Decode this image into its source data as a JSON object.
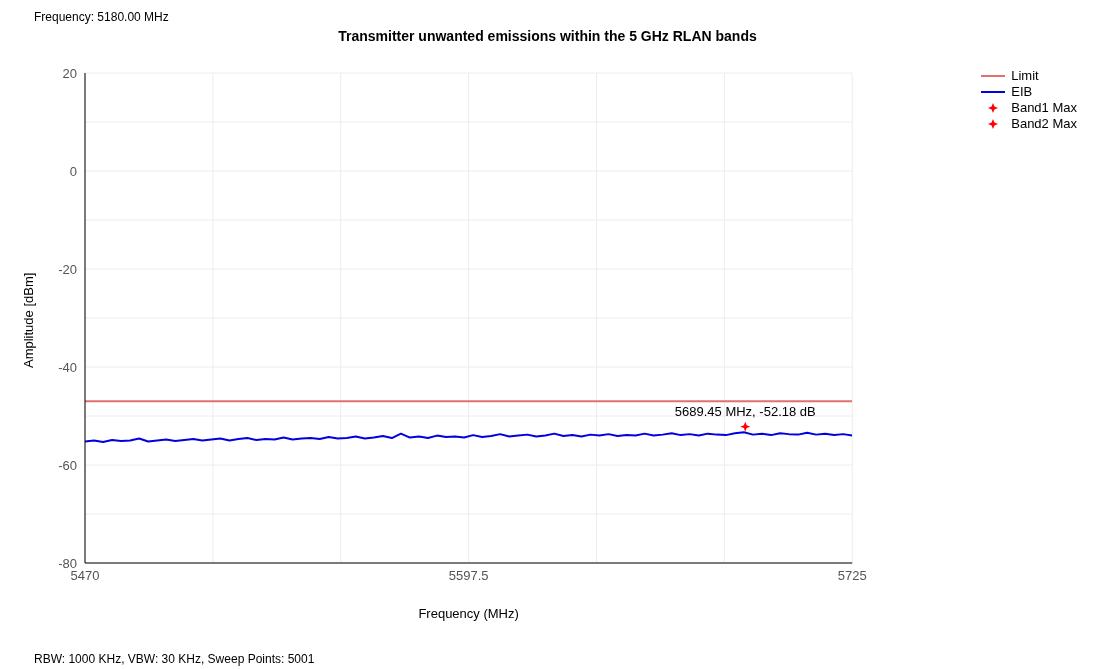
{
  "chart_data": {
    "type": "line",
    "title": "Transmitter unwanted emissions within the 5 GHz RLAN bands",
    "xlabel": "Frequency (MHz)",
    "ylabel": "Amplitude [dBm]",
    "annotations": [
      "Frequency: 5180.00 MHz",
      "RBW: 1000 KHz,  VBW: 30 KHz,  Sweep Points: 5001",
      {
        "text": "5689.45 MHz, -52.18 dB",
        "x": 5689.45,
        "y": -52.18
      }
    ],
    "xlim": [
      5470,
      5725
    ],
    "xticks": [
      5470,
      {
        "value": 5512.5,
        "label": null
      },
      {
        "value": 5555,
        "label": null
      },
      5597.5,
      {
        "value": 5640,
        "label": null
      },
      {
        "value": 5682.5,
        "label": null
      },
      5725
    ],
    "ylim": [
      -80,
      20
    ],
    "yticks": [
      -80,
      {
        "value": -70,
        "label": null
      },
      -60,
      {
        "value": -50,
        "label": null
      },
      -40,
      {
        "value": -30,
        "label": null
      },
      -20,
      {
        "value": -10,
        "label": null
      },
      0,
      {
        "value": 10,
        "label": null
      },
      20
    ],
    "grid": true,
    "legend": "top right",
    "series": [
      {
        "name": "Limit",
        "color": "#e07070",
        "x": [
          5470,
          5725
        ],
        "values": [
          -47,
          -47
        ]
      },
      {
        "name": "EIB",
        "color": "#0000e0",
        "x": [
          5470,
          5473,
          5476,
          5479,
          5482,
          5485,
          5488,
          5491,
          5494,
          5497,
          5500,
          5503,
          5506,
          5509,
          5512,
          5515,
          5518,
          5521,
          5524,
          5527,
          5530,
          5533,
          5536,
          5539,
          5542,
          5545,
          5548,
          5551,
          5554,
          5557,
          5560,
          5563,
          5566,
          5569,
          5572,
          5575,
          5578,
          5581,
          5584,
          5587,
          5590,
          5593,
          5596,
          5599,
          5602,
          5605,
          5608,
          5611,
          5614,
          5617,
          5620,
          5623,
          5626,
          5629,
          5632,
          5635,
          5638,
          5641,
          5644,
          5647,
          5650,
          5653,
          5656,
          5659,
          5662,
          5665,
          5668,
          5671,
          5674,
          5677,
          5680,
          5683,
          5686,
          5689,
          5692,
          5695,
          5698,
          5701,
          5704,
          5707,
          5710,
          5713,
          5716,
          5719,
          5722,
          5725
        ],
        "values": [
          -55.2,
          -55.0,
          -55.3,
          -54.9,
          -55.1,
          -55.0,
          -54.6,
          -55.2,
          -55.0,
          -54.8,
          -55.1,
          -54.9,
          -54.7,
          -55.0,
          -54.8,
          -54.6,
          -55.0,
          -54.7,
          -54.5,
          -54.9,
          -54.7,
          -54.8,
          -54.4,
          -54.8,
          -54.6,
          -54.5,
          -54.7,
          -54.3,
          -54.6,
          -54.5,
          -54.2,
          -54.6,
          -54.4,
          -54.1,
          -54.5,
          -53.6,
          -54.4,
          -54.2,
          -54.5,
          -54.0,
          -54.3,
          -54.2,
          -54.4,
          -53.9,
          -54.3,
          -54.1,
          -53.7,
          -54.2,
          -54.0,
          -53.8,
          -54.2,
          -54.0,
          -53.6,
          -54.1,
          -53.9,
          -54.2,
          -53.8,
          -54.0,
          -53.7,
          -54.1,
          -53.9,
          -54.0,
          -53.6,
          -54.0,
          -53.8,
          -53.5,
          -53.9,
          -53.7,
          -54.0,
          -53.6,
          -53.8,
          -53.9,
          -53.5,
          -53.3,
          -53.8,
          -53.6,
          -53.9,
          -53.5,
          -53.7,
          -53.8,
          -53.4,
          -53.8,
          -53.6,
          -53.9,
          -53.7,
          -54.0
        ]
      },
      {
        "name": "Band1 Max",
        "type": "scatter",
        "marker": "star",
        "color": "#ff0000",
        "x": [
          5689.45
        ],
        "values": [
          -52.18
        ]
      },
      {
        "name": "Band2 Max",
        "type": "scatter",
        "marker": "star",
        "color": "#ff0000"
      }
    ]
  }
}
